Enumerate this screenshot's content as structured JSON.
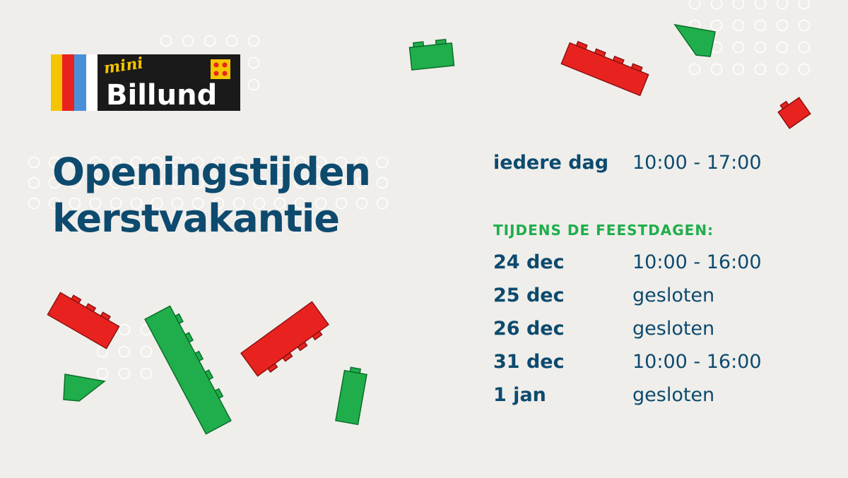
{
  "logo": {
    "small": "mini",
    "name": "Billund"
  },
  "title": {
    "line1": "Openingstijden",
    "line2": "kerstvakantie"
  },
  "schedule": {
    "daily": {
      "label": "iedere dag",
      "hours": "10:00 - 17:00"
    },
    "holidays_heading": "TIJDENS DE FEESTDAGEN:",
    "holidays": [
      {
        "date": "24 dec",
        "hours": "10:00 - 16:00"
      },
      {
        "date": "25 dec",
        "hours": "gesloten"
      },
      {
        "date": "26 dec",
        "hours": "gesloten"
      },
      {
        "date": "31 dec",
        "hours": "10:00 - 16:00"
      },
      {
        "date": "1 jan",
        "hours": "gesloten"
      }
    ]
  }
}
